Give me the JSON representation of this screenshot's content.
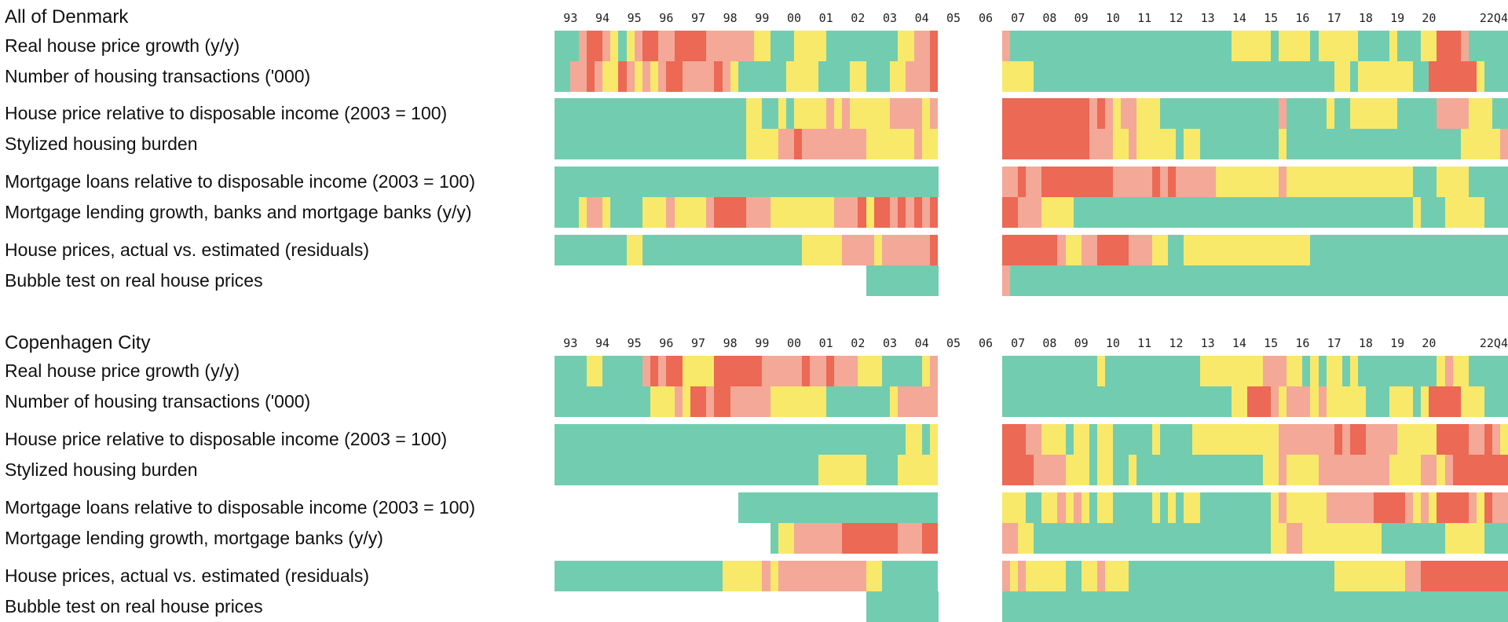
{
  "colors": {
    "g": "#72cdb0",
    "y": "#f8e96a",
    "l": "#f4a897",
    "r": "#eb6955"
  },
  "chart_data": [
    {
      "type": "heatmap",
      "title": "All of Denmark",
      "x_unit": "quarter",
      "periods": [
        {
          "start": "1993Q1",
          "end": "2004Q4"
        },
        {
          "start": "2007Q1",
          "end": "2022Q4"
        }
      ],
      "year_labels": [
        "93",
        "94",
        "95",
        "96",
        "97",
        "98",
        "99",
        "00",
        "01",
        "02",
        "03",
        "04",
        "05",
        "06",
        "07",
        "08",
        "09",
        "10",
        "11",
        "12",
        "13",
        "14",
        "15",
        "16",
        "17",
        "18",
        "19",
        "20",
        "22Q4"
      ],
      "encoding": "runs of quarters: g=green, y=yellow, l=light red, r=red, e=no data",
      "rows": [
        {
          "label": "Real house price growth (y/y)",
          "p1": "g3 l1 r2 l1 y1 g1 y1 l1 r2 l2 r4 l6 y2 g3 y4 g9 y2 l2 r1",
          "p2": "l1 g28 y5 g1 y4 g1 y5 g4 y1 g3 y2 r3 l1 g5"
        },
        {
          "label": "Number of housing transactions ('000)",
          "p1": "g2 l2 r1 l1 y2 r1 l1 y1 l1 y1 l1 r2 l4 r1 l1 y1 g6 y4 g4 y2 g3 y2 l3 r1",
          "p2": "y4 g38 y2 g1 y7 g2 r6 y1 g3"
        },
        {
          "label": "House price relative to disposable income (2003 = 100)",
          "p1": "g24 y2 g2 y1 g1 y4 l1 y1 l1 y5 l4 y1 l1",
          "p2": "r11 l1 r1 l1 y1 l2 y3 g15 l1 g5 y1 g2 y6 g5 l4 y3 g2"
        },
        {
          "label": "Stylized housing burden",
          "p1": "g24 y4 l2 r1 l8 y6 l1 y2",
          "p2": "r11 l3 y2 l1 y5 g1 y2 g10 y1 g22 y5 l1"
        },
        {
          "label": "Mortgage loans relative to disposable income (2003 = 100)",
          "p1": "g48",
          "p2": "l2 r1 l2 r9 l5 r1 l1 r1 l5 y8 l1 y16 g3 y4 g5"
        },
        {
          "label": "Mortgage lending growth, banks and mortgage banks (y/y)",
          "p1": "g3 y1 l2 y1 g4 y3 l1 y4 l1 r4 l3 y8 l3 r1 y1 r2 l1 r1 l1 r1 l1 r1",
          "p2": "r2 l3 y4 g43 y1 g3 y5 g3"
        },
        {
          "label": "House prices, actual vs. estimated (residuals)",
          "p1": "g9 y2 g20 y5 l4 y1 l6 r1",
          "p2": "r7 l1 y2 l2 r4 l3 y2 g2 y16 g25"
        },
        {
          "label": "Bubble test on real house prices",
          "p1": "e39 g9",
          "p2": "l1 g63"
        }
      ]
    },
    {
      "type": "heatmap",
      "title": "Copenhagen City",
      "x_unit": "quarter",
      "periods": [
        {
          "start": "1993Q1",
          "end": "2004Q4"
        },
        {
          "start": "2007Q1",
          "end": "2022Q4"
        }
      ],
      "year_labels": [
        "93",
        "94",
        "95",
        "96",
        "97",
        "98",
        "99",
        "00",
        "01",
        "02",
        "03",
        "04",
        "05",
        "06",
        "07",
        "08",
        "09",
        "10",
        "11",
        "12",
        "13",
        "14",
        "15",
        "16",
        "17",
        "18",
        "19",
        "20",
        "22Q4"
      ],
      "encoding": "runs of quarters: g=green, y=yellow, l=light red, r=red, e=no data",
      "rows": [
        {
          "label": "Real house price growth (y/y)",
          "p1": "g4 y2 g5 l1 r1 l1 r2 y4 r6 l5 r1 l2 r1 l3 y3 g5 y1 l1",
          "p2": "g12 y1 g12 y8 l3 y2 g1 y1 g1 y2 g1 y1 g10 y1 l1 y2 g5"
        },
        {
          "label": "Number of housing transactions ('000)",
          "p1": "g12 y3 l1 y1 r2 l1 r2 l5 y7 g8 y1 l5",
          "p2": "g29 y2 r3 l1 y1 l3 y1 l1 y5 g3 y3 g1 y1 r4 y3 g3"
        },
        {
          "label": "House price relative to disposable income (2003 = 100)",
          "p1": "g44 y2 g1 y1",
          "p2": "r3 l2 y3 g1 y2 g1 y2 g5 y1 g4 y11 l7 r1 l1 r2 l4 y5 r4 l2 r1 l1 y1"
        },
        {
          "label": "Stylized housing burden",
          "p1": "g33 y6 g4 y5",
          "p2": "r4 l4 y3 g1 y2 g2 y1 g16 y2 l1 y4 l9 y4 l2 y1 l1 r7"
        },
        {
          "label": "Mortgage loans relative to disposable income (2003 = 100)",
          "p1": "e23 g25",
          "p2": "y3 g2 y2 l1 y1 l1 y1 g1 y2 g5 y1 g1 y1 g1 y2 g9 y1 l1 y5 l6 r4 l1 y1 l1 y1 r4 l1 y1 r1 l2"
        },
        {
          "label": "Mortgage lending growth, mortgage banks (y/y)",
          "p1": "e27 g1 y2 l6 r7 l3 r2",
          "p2": "l2 y2 g30 y2 l2 y10 g8 y5 g3"
        },
        {
          "label": "House prices, actual vs. estimated (residuals)",
          "p1": "g21 y5 l1 y1 l11 y2 g7",
          "p2": "l1 y1 l1 y5 g2 y2 l1 y3 g26 y9 l2 r11"
        },
        {
          "label": "Bubble test on real house prices",
          "p1": "e39 g9",
          "p2": "g64"
        }
      ]
    }
  ]
}
